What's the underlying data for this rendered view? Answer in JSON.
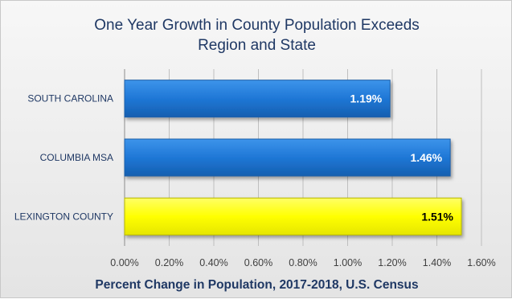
{
  "chart_data": {
    "type": "bar",
    "orientation": "horizontal",
    "title": [
      "One Year Growth in County Population Exceeds",
      "Region and State"
    ],
    "categories": [
      "SOUTH CAROLINA",
      "COLUMBIA MSA",
      "LEXINGTON COUNTY"
    ],
    "values": [
      1.19,
      1.46,
      1.51
    ],
    "data_labels": [
      "1.19%",
      "1.46%",
      "1.51%"
    ],
    "bar_colors": [
      "#1f77d6",
      "#1f77d6",
      "#ffff00"
    ],
    "label_colors": [
      "#ffffff",
      "#ffffff",
      "#000000"
    ],
    "xlabel": "Percent Change in Population, 2017-2018, U.S. Census",
    "ylabel": "",
    "xlim": [
      0,
      1.6
    ],
    "x_ticks": [
      0,
      0.2,
      0.4,
      0.6,
      0.8,
      1.0,
      1.2,
      1.4,
      1.6
    ],
    "x_tick_labels": [
      "0.00%",
      "0.20%",
      "0.40%",
      "0.60%",
      "0.80%",
      "1.00%",
      "1.20%",
      "1.40%",
      "1.60%"
    ],
    "grid": true,
    "legend": "none"
  }
}
